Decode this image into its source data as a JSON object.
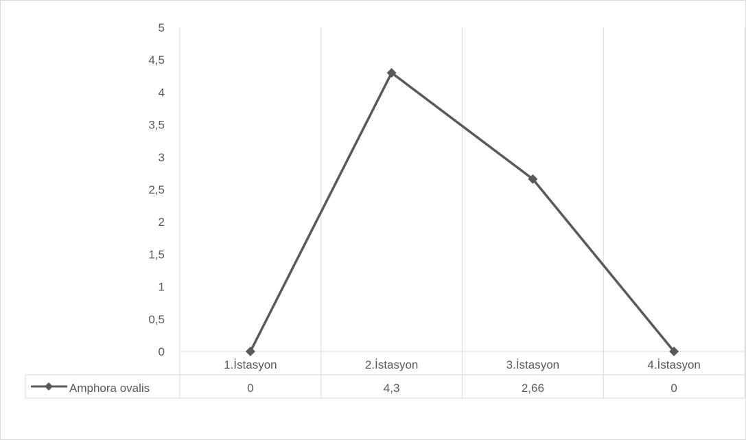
{
  "chart_data": {
    "type": "line",
    "categories": [
      "1.İstasyon",
      "2.İstasyon",
      "3.İstasyon",
      "4.İstasyon"
    ],
    "series": [
      {
        "name": "Amphora ovalis",
        "values": [
          0,
          4.3,
          2.66,
          0
        ],
        "color": "#595959",
        "marker": "diamond"
      }
    ],
    "value_labels": [
      "0",
      "4,3",
      "2,66",
      "0"
    ],
    "ylim": [
      0,
      5
    ],
    "yticks": [
      "0",
      "0,5",
      "1",
      "1,5",
      "2",
      "2,5",
      "3",
      "3,5",
      "4",
      "4,5",
      "5"
    ],
    "grid": "vertical",
    "legend": "data-table",
    "title": "",
    "xlabel": "",
    "ylabel": ""
  }
}
